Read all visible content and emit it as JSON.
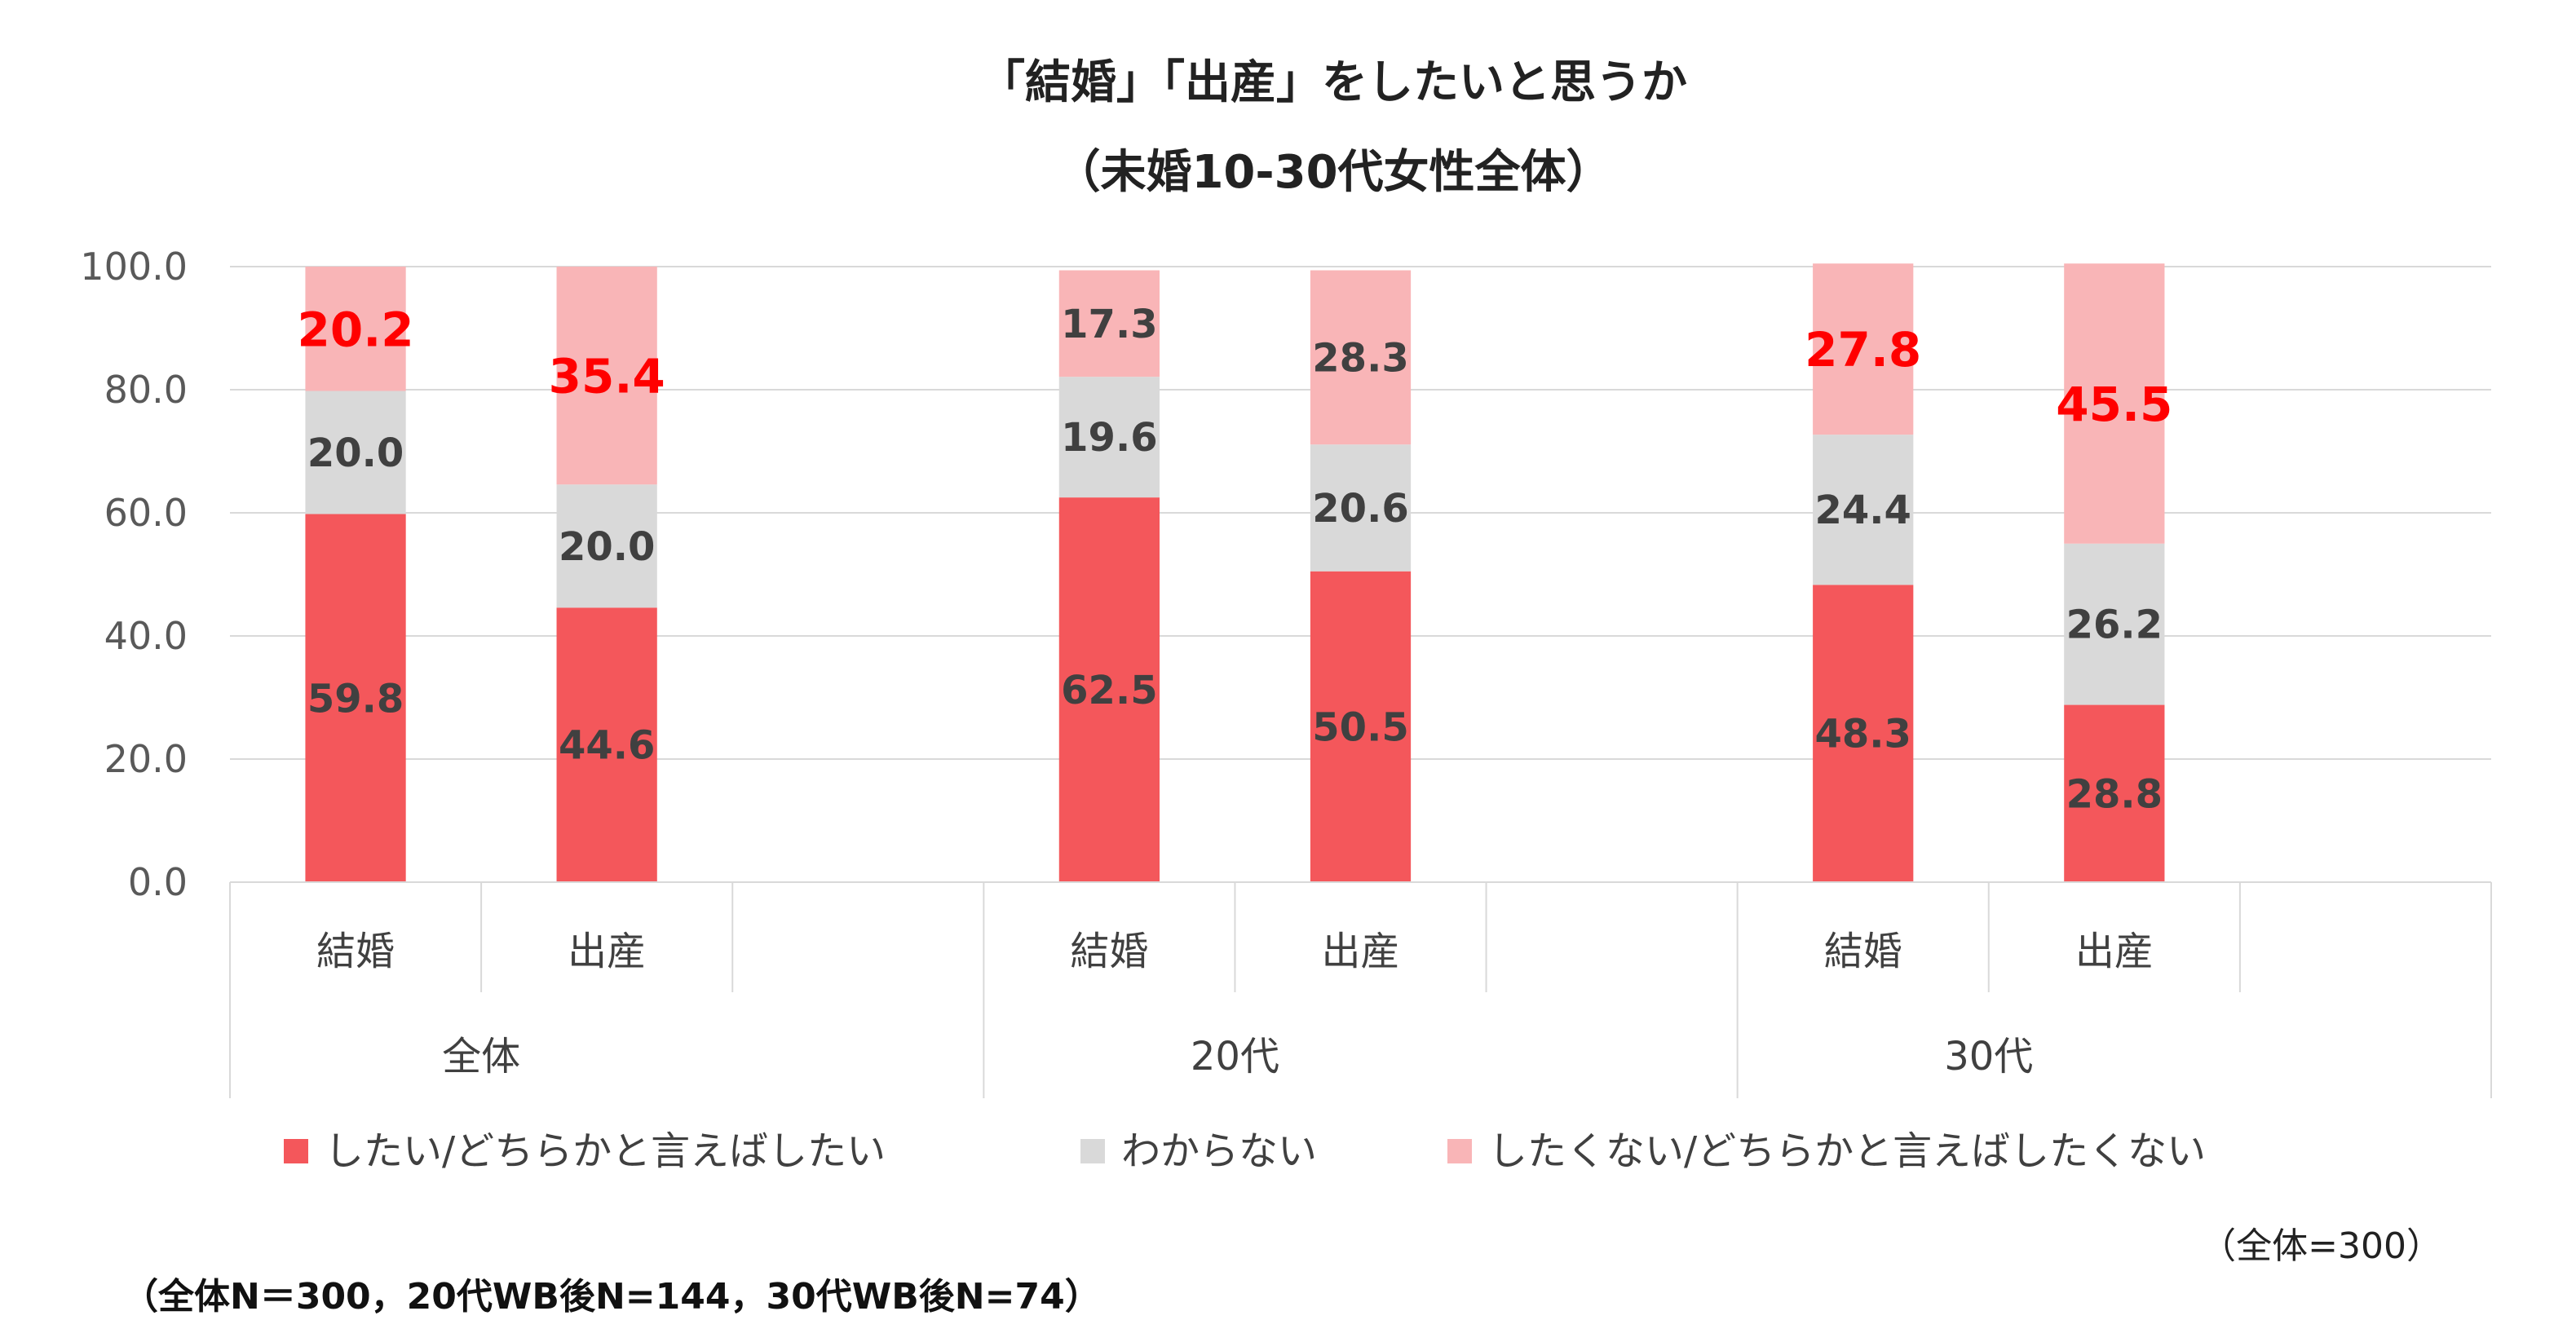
{
  "chart_data": {
    "type": "bar",
    "stacked": true,
    "title": "「結婚」「出産」をしたいと思うか",
    "subtitle": "（未婚10-30代女性全体）",
    "ylim": [
      0,
      100
    ],
    "yticks": [
      "0.0",
      "20.0",
      "40.0",
      "60.0",
      "80.0",
      "100.0"
    ],
    "groups": [
      "全体",
      "20代",
      "30代"
    ],
    "categories": [
      "結婚",
      "出産",
      "結婚",
      "出産",
      "結婚",
      "出産"
    ],
    "series": [
      {
        "name": "したい/どちらかと言えばしたい",
        "color": "#f4575b",
        "values": [
          59.8,
          44.6,
          62.5,
          50.5,
          48.3,
          28.8
        ]
      },
      {
        "name": "わからない",
        "color": "#d9d9d9",
        "values": [
          20.0,
          20.0,
          19.6,
          20.6,
          24.4,
          26.2
        ]
      },
      {
        "name": "したくない/どちらかと言えばしたくない",
        "color": "#f9b5b7",
        "values": [
          20.2,
          35.4,
          17.3,
          28.3,
          27.8,
          45.5
        ]
      }
    ],
    "highlighted_labels": [
      true,
      true,
      false,
      false,
      true,
      true
    ],
    "highlight_color": "#ff0000",
    "grid": true,
    "legend_position": "bottom",
    "note_total": "（全体=300）",
    "footnote": "（全体N＝300，20代WB後N=144，30代WB後N=74）"
  }
}
